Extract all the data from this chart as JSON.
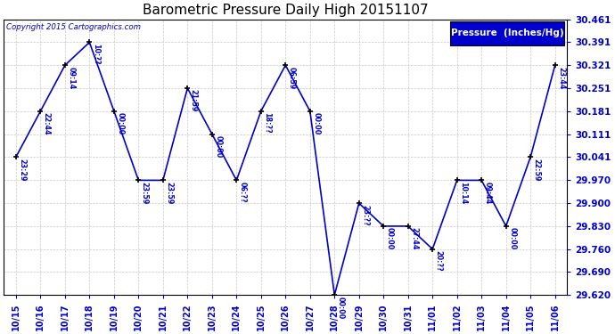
{
  "title": "Barometric Pressure Daily High 20151107",
  "copyright": "Copyright 2015 Cartographics.com",
  "legend_label": "Pressure  (Inches/Hg)",
  "x_labels": [
    "10/15",
    "10/16",
    "10/17",
    "10/18",
    "10/19",
    "10/20",
    "10/21",
    "10/22",
    "10/23",
    "10/24",
    "10/25",
    "10/26",
    "10/27",
    "10/28",
    "10/29",
    "10/30",
    "10/31",
    "11/01",
    "11/02",
    "11/03",
    "11/04",
    "11/05",
    "11/06"
  ],
  "data": [
    [
      0,
      30.041,
      "23:29"
    ],
    [
      1,
      30.181,
      "22:44"
    ],
    [
      2,
      30.321,
      "09:14"
    ],
    [
      3,
      30.391,
      "10:??"
    ],
    [
      4,
      30.181,
      "00:00"
    ],
    [
      5,
      29.97,
      "23:59"
    ],
    [
      6,
      29.97,
      "23:59"
    ],
    [
      7,
      30.251,
      "21:59"
    ],
    [
      8,
      30.111,
      "00:00"
    ],
    [
      9,
      29.97,
      "06:??"
    ],
    [
      10,
      30.181,
      "18:??"
    ],
    [
      11,
      30.321,
      "06:59"
    ],
    [
      12,
      30.181,
      "00:00"
    ],
    [
      13,
      29.62,
      "00:00"
    ],
    [
      14,
      29.9,
      "23:??"
    ],
    [
      15,
      29.83,
      "00:00"
    ],
    [
      16,
      29.83,
      "27:44"
    ],
    [
      17,
      29.76,
      "20:??"
    ],
    [
      18,
      29.97,
      "10:14"
    ],
    [
      19,
      29.97,
      "09:44"
    ],
    [
      20,
      29.83,
      "00:00"
    ],
    [
      21,
      30.041,
      "22:59"
    ],
    [
      22,
      30.321,
      "23:44"
    ]
  ],
  "ylim_lo": 29.62,
  "ylim_hi": 30.461,
  "ytick_vals": [
    29.62,
    29.69,
    29.76,
    29.83,
    29.9,
    29.97,
    30.041,
    30.111,
    30.181,
    30.251,
    30.321,
    30.391,
    30.461
  ],
  "line_color": "#0000CC",
  "marker_color": "#000000",
  "bg_color": "#ffffff",
  "grid_color": "#c8c8c8",
  "title_color": "#000000",
  "label_color": "#0000CC",
  "legend_bg": "#0000CC",
  "legend_text": "#ffffff",
  "figw": 6.9,
  "figh": 3.75,
  "dpi": 100
}
